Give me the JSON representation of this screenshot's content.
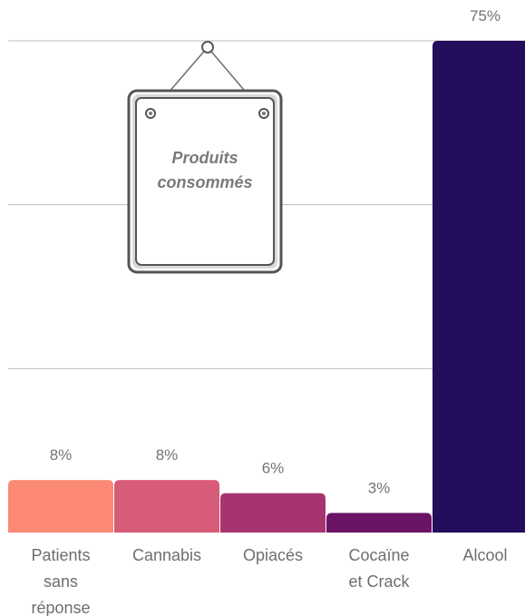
{
  "chart_data": {
    "type": "bar",
    "title": "Produits consommés",
    "categories": [
      [
        "Patients",
        "sans",
        "réponse"
      ],
      [
        "Cannabis"
      ],
      [
        "Opiacés"
      ],
      [
        "Cocaïne",
        "et Crack"
      ],
      [
        "Alcool"
      ]
    ],
    "values": [
      8,
      8,
      6,
      3,
      75
    ],
    "value_labels": [
      "8%",
      "8%",
      "6%",
      "3%",
      "75%"
    ],
    "colors": [
      "#fb8976",
      "#d75c77",
      "#a8346f",
      "#6b1466",
      "#230d5c"
    ],
    "ylim": [
      0,
      75
    ],
    "grid": true,
    "xlabel": "",
    "ylabel": ""
  }
}
